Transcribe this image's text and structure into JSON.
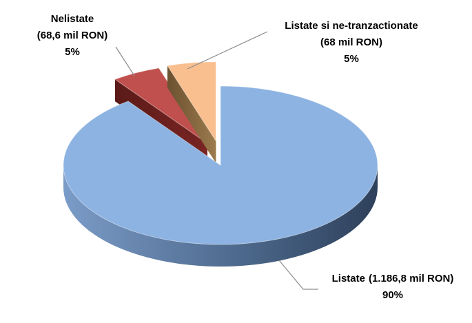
{
  "chart_data": {
    "type": "pie3d",
    "categories": [
      "Listate",
      "Nelistate",
      "Listate si ne-tranzactionate"
    ],
    "amount_labels": [
      "(1.186,8 mil RON)",
      "(68,6 mil RON)",
      "(68 mil RON)"
    ],
    "values": [
      90,
      5,
      5
    ],
    "value_labels": [
      "90%",
      "5%",
      "5%"
    ],
    "colors": [
      "#8db3e2",
      "#c0504d",
      "#f9bf8f"
    ]
  }
}
